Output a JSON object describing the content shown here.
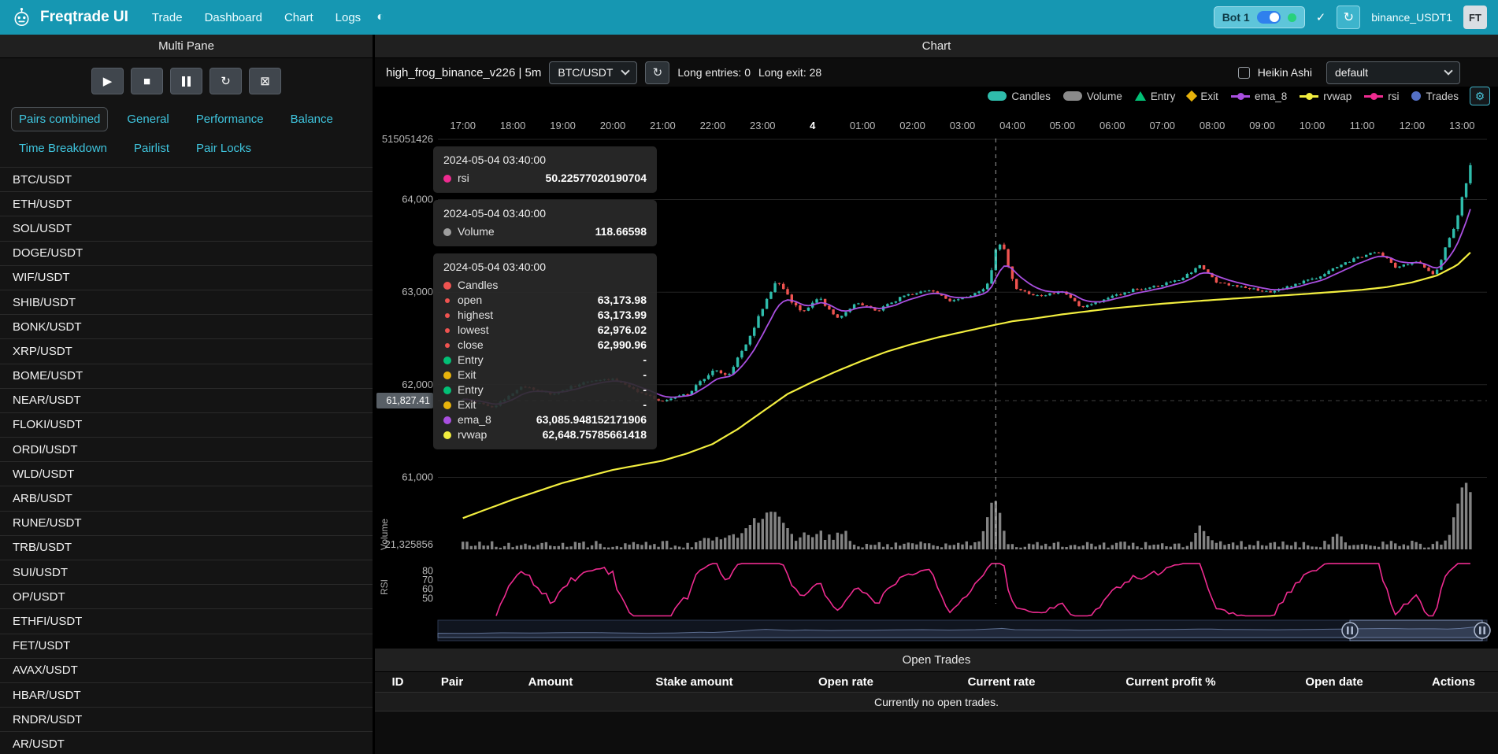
{
  "icons": {
    "theme": "◐",
    "check": "✓",
    "reload": "↻",
    "gear": "⚙",
    "play": "▶",
    "stop": "■",
    "force_exit": "⊠"
  },
  "navbar": {
    "brand": "Freqtrade UI",
    "links": [
      "Trade",
      "Dashboard",
      "Chart",
      "Logs"
    ],
    "bot": {
      "name": "Bot 1"
    },
    "account": "binance_USDT1",
    "avatar": "FT"
  },
  "sidebar": {
    "title": "Multi Pane",
    "controls": [
      "play",
      "stop",
      "pause",
      "reload",
      "force_exit"
    ],
    "tabs": [
      "Pairs combined",
      "General",
      "Performance",
      "Balance",
      "Time Breakdown",
      "Pairlist",
      "Pair Locks"
    ],
    "active_tab": "Pairs combined",
    "pairs": [
      "BTC/USDT",
      "ETH/USDT",
      "SOL/USDT",
      "DOGE/USDT",
      "WIF/USDT",
      "SHIB/USDT",
      "BONK/USDT",
      "XRP/USDT",
      "BOME/USDT",
      "NEAR/USDT",
      "FLOKI/USDT",
      "ORDI/USDT",
      "WLD/USDT",
      "ARB/USDT",
      "RUNE/USDT",
      "TRB/USDT",
      "SUI/USDT",
      "OP/USDT",
      "ETHFI/USDT",
      "FET/USDT",
      "AVAX/USDT",
      "HBAR/USDT",
      "RNDR/USDT",
      "AR/USDT"
    ]
  },
  "chart_panel": {
    "title": "Chart",
    "strategy": "high_frog_binance_v226 | 5m",
    "pair_select": "BTC/USDT",
    "long_entries": "Long entries: 0",
    "long_exits": "Long exit: 28",
    "heikin_ashi_label": "Heikin Ashi",
    "plot_config_select": "default"
  },
  "chart_data": {
    "type": "candlestick",
    "pair": "BTC/USDT",
    "timeframe": "5m",
    "x_labels": [
      "17:00",
      "18:00",
      "19:00",
      "20:00",
      "21:00",
      "22:00",
      "23:00",
      "4",
      "01:00",
      "02:00",
      "03:00",
      "04:00",
      "05:00",
      "06:00",
      "07:00",
      "08:00",
      "09:00",
      "10:00",
      "11:00",
      "12:00",
      "13:00"
    ],
    "price_ticks": [
      "515051426",
      "64,000",
      "63,000",
      "62,000",
      "61,000"
    ],
    "volume_tick": "21,325856",
    "rsi_ticks": [
      "80",
      "70",
      "60",
      "50"
    ],
    "axis_pointer_value": "61,827.41",
    "pane_labels": {
      "volume": "Volume",
      "rsi": "RSI"
    },
    "colors": {
      "up": "#2fbcab",
      "down": "#ef5350",
      "volume": "#9a9a9a",
      "ema": "#a94fe0",
      "rvwap": "#f2ee3f",
      "rsi": "#ee2b90",
      "entry": "#02c076",
      "exit": "#e8b30b",
      "trades": "#5470c6"
    },
    "legend": [
      {
        "label": "Candles",
        "color": "#2fbcab",
        "shape": "pill"
      },
      {
        "label": "Volume",
        "color": "#8a8a8a",
        "shape": "pill"
      },
      {
        "label": "Entry",
        "color": "#02c076",
        "shape": "triangle"
      },
      {
        "label": "Exit",
        "color": "#e8b30b",
        "shape": "diamond"
      },
      {
        "label": "ema_8",
        "color": "#a94fe0",
        "shape": "line"
      },
      {
        "label": "rvwap",
        "color": "#f2ee3f",
        "shape": "line"
      },
      {
        "label": "rsi",
        "color": "#ee2b90",
        "shape": "line"
      },
      {
        "label": "Trades",
        "color": "#5470c6",
        "shape": "circle"
      }
    ],
    "series": {
      "price_anchors": [
        [
          0,
          61840
        ],
        [
          0.6,
          61760
        ],
        [
          1.2,
          61980
        ],
        [
          1.8,
          61900
        ],
        [
          2.4,
          62020
        ],
        [
          3,
          62060
        ],
        [
          3.5,
          61930
        ],
        [
          4,
          61820
        ],
        [
          4.5,
          61900
        ],
        [
          5,
          62160
        ],
        [
          5.3,
          62100
        ],
        [
          5.7,
          62450
        ],
        [
          6,
          62840
        ],
        [
          6.3,
          63130
        ],
        [
          6.6,
          62880
        ],
        [
          6.8,
          62760
        ],
        [
          7.1,
          62950
        ],
        [
          7.5,
          62720
        ],
        [
          7.9,
          62890
        ],
        [
          8.3,
          62800
        ],
        [
          8.8,
          62950
        ],
        [
          9.3,
          63030
        ],
        [
          9.8,
          62900
        ],
        [
          10.3,
          63000
        ],
        [
          10.55,
          63120
        ],
        [
          10.67,
          63480
        ],
        [
          10.8,
          63560
        ],
        [
          10.95,
          63180
        ],
        [
          11.1,
          63030
        ],
        [
          11.5,
          62960
        ],
        [
          12,
          63010
        ],
        [
          12.4,
          62830
        ],
        [
          12.9,
          62930
        ],
        [
          13.4,
          63020
        ],
        [
          13.9,
          63070
        ],
        [
          14.4,
          63150
        ],
        [
          14.75,
          63280
        ],
        [
          15.1,
          63100
        ],
        [
          15.6,
          63050
        ],
        [
          16.1,
          63000
        ],
        [
          16.6,
          63070
        ],
        [
          17.1,
          63160
        ],
        [
          17.6,
          63300
        ],
        [
          18,
          63390
        ],
        [
          18.3,
          63450
        ],
        [
          18.7,
          63260
        ],
        [
          19.1,
          63340
        ],
        [
          19.45,
          63190
        ],
        [
          19.8,
          63620
        ],
        [
          20,
          64020
        ],
        [
          20.17,
          64380
        ]
      ],
      "rvwap_anchors": [
        [
          0,
          60560
        ],
        [
          1,
          60760
        ],
        [
          2,
          60940
        ],
        [
          3,
          61080
        ],
        [
          4,
          61180
        ],
        [
          4.5,
          61260
        ],
        [
          5,
          61360
        ],
        [
          5.5,
          61520
        ],
        [
          6,
          61710
        ],
        [
          6.5,
          61900
        ],
        [
          7,
          62030
        ],
        [
          7.5,
          62150
        ],
        [
          8,
          62260
        ],
        [
          8.5,
          62360
        ],
        [
          9,
          62440
        ],
        [
          9.5,
          62510
        ],
        [
          10,
          62570
        ],
        [
          10.67,
          62649
        ],
        [
          11,
          62685
        ],
        [
          11.5,
          62720
        ],
        [
          12,
          62760
        ],
        [
          13,
          62825
        ],
        [
          14,
          62875
        ],
        [
          15,
          62915
        ],
        [
          16,
          62950
        ],
        [
          17,
          62985
        ],
        [
          18,
          63025
        ],
        [
          18.5,
          63055
        ],
        [
          19,
          63105
        ],
        [
          19.5,
          63180
        ],
        [
          19.9,
          63290
        ],
        [
          20.17,
          63430
        ]
      ],
      "volume_spikes": [
        [
          5.8,
          22
        ],
        [
          6.1,
          30
        ],
        [
          6.35,
          26
        ],
        [
          7.6,
          16
        ],
        [
          10.55,
          26
        ],
        [
          10.67,
          40
        ],
        [
          14.8,
          22
        ],
        [
          17.5,
          14
        ],
        [
          19.9,
          28
        ],
        [
          20.05,
          46
        ],
        [
          20.15,
          38
        ]
      ],
      "crosshair_t": 10.667
    }
  },
  "tooltip": {
    "sections": [
      {
        "time": "2024-05-04 03:40:00",
        "rows": [
          {
            "label": "rsi",
            "value": "50.22577020190704",
            "color": "#ee2b90"
          }
        ]
      },
      {
        "time": "2024-05-04 03:40:00",
        "rows": [
          {
            "label": "Volume",
            "value": "118.66598",
            "color": "#9e9e9e"
          }
        ]
      },
      {
        "time": "2024-05-04 03:40:00",
        "rows": [
          {
            "label": "Candles",
            "value": "",
            "color": "#ef5350"
          },
          {
            "label": "open",
            "value": "63,173.98",
            "color": "#ef5350",
            "small": true
          },
          {
            "label": "highest",
            "value": "63,173.99",
            "color": "#ef5350",
            "small": true
          },
          {
            "label": "lowest",
            "value": "62,976.02",
            "color": "#ef5350",
            "small": true
          },
          {
            "label": "close",
            "value": "62,990.96",
            "color": "#ef5350",
            "small": true
          },
          {
            "label": "Entry",
            "value": "-",
            "color": "#02c076"
          },
          {
            "label": "Exit",
            "value": "-",
            "color": "#e8b30b"
          },
          {
            "label": "Entry",
            "value": "-",
            "color": "#02c076"
          },
          {
            "label": "Exit",
            "value": "-",
            "color": "#e8b30b"
          },
          {
            "label": "ema_8",
            "value": "63,085.948152171906",
            "color": "#a94fe0"
          },
          {
            "label": "rvwap",
            "value": "62,648.75785661418",
            "color": "#f2ee3f"
          }
        ]
      }
    ]
  },
  "open_trades": {
    "title": "Open Trades",
    "headers": [
      "ID",
      "Pair",
      "Amount",
      "Stake amount",
      "Open rate",
      "Current rate",
      "Current profit %",
      "Open date",
      "Actions"
    ],
    "empty_message": "Currently no open trades."
  }
}
